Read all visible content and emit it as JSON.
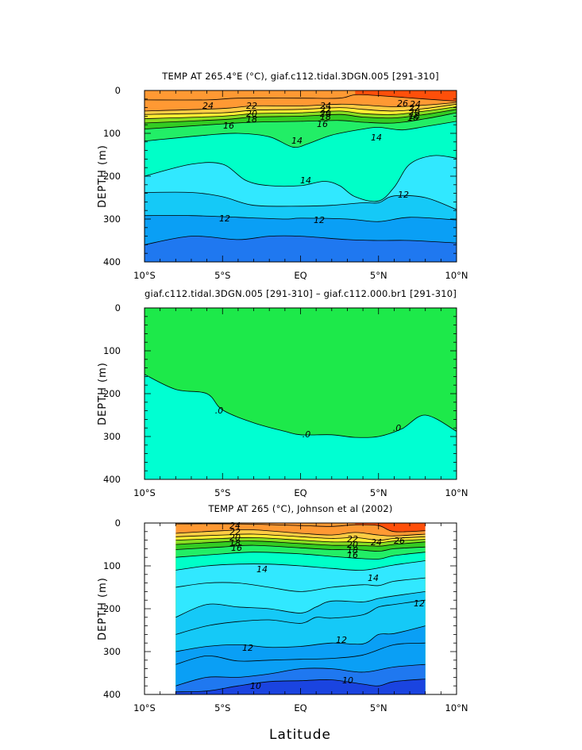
{
  "colors": {
    "c10": "#1a44e0",
    "c11": "#1f78f0",
    "c12": "#0a9ff5",
    "c13": "#15c9f7",
    "c14": "#31e8ff",
    "c15": "#00ffc8",
    "c16": "#22ee66",
    "c17": "#33cc22",
    "c18": "#88dd22",
    "c19": "#ffee33",
    "c20": "#ffcc44",
    "c24": "#ff9933",
    "c26": "#ff4f0a",
    "zero_up": "#1de94a",
    "zero_down": "#00ffd2"
  },
  "xlabel": "Latitude",
  "chart_data": [
    {
      "type": "heatmap",
      "title": "TEMP AT 265.4°E (°C), giaf.c112.tidal.3DGN.005 [291-310]",
      "ylabel": "DEPTH (m)",
      "xlim": [
        -10,
        10
      ],
      "ylim": [
        0,
        400
      ],
      "xticks": [
        "10°S",
        "5°S",
        "EQ",
        "5°N",
        "10°N"
      ],
      "yticks": [
        "0",
        "100",
        "200",
        "300",
        "400"
      ],
      "contour_labels": [
        "24",
        "22",
        "20",
        "18",
        "16",
        "14",
        "12",
        "26",
        "24",
        "22",
        "20",
        "18",
        "16",
        "16",
        "14",
        "14",
        "12",
        "12",
        "22",
        "24",
        "20",
        "18"
      ],
      "contours": [
        {
          "level": 26,
          "x": [
            -10,
            -6,
            -4,
            0,
            2.5,
            3.5,
            5,
            8,
            10
          ],
          "y": [
            22,
            22,
            18,
            18,
            18,
            10,
            12,
            20,
            25
          ]
        },
        {
          "level": 24,
          "x": [
            -10,
            -5,
            -3,
            0,
            2.5,
            4,
            6,
            8,
            10
          ],
          "y": [
            48,
            42,
            36,
            36,
            32,
            34,
            38,
            34,
            28
          ]
        },
        {
          "level": 22,
          "x": [
            -10,
            -5,
            -3,
            0,
            2.5,
            4,
            6,
            8,
            10
          ],
          "y": [
            56,
            52,
            46,
            44,
            40,
            44,
            48,
            42,
            32
          ]
        },
        {
          "level": 20,
          "x": [
            -10,
            -5,
            -3,
            0,
            2.5,
            4,
            6,
            8,
            10
          ],
          "y": [
            66,
            60,
            54,
            52,
            48,
            54,
            56,
            48,
            38
          ]
        },
        {
          "level": 18,
          "x": [
            -10,
            -5,
            -3,
            0,
            2.5,
            4,
            6,
            8,
            10
          ],
          "y": [
            76,
            68,
            62,
            60,
            56,
            62,
            64,
            56,
            44
          ]
        },
        {
          "level": 16,
          "x": [
            -10,
            -5,
            -3,
            0,
            2.5,
            4,
            6,
            8,
            10
          ],
          "y": [
            90,
            78,
            74,
            72,
            70,
            74,
            76,
            66,
            52
          ]
        },
        {
          "level": 14,
          "x": [
            -10,
            -6,
            -4,
            -2,
            -0.5,
            0.5,
            2,
            4,
            5,
            6.5,
            8,
            10
          ],
          "y": [
            118,
            104,
            100,
            108,
            132,
            124,
            104,
            90,
            86,
            92,
            84,
            72
          ]
        },
        {
          "level": 13,
          "x": [
            -10,
            -7,
            -5,
            -3.5,
            -2,
            0,
            1.5,
            2.5,
            3.5,
            5,
            6,
            7,
            8.5,
            10
          ],
          "y": [
            200,
            172,
            172,
            210,
            222,
            222,
            212,
            222,
            248,
            258,
            226,
            172,
            152,
            158
          ]
        },
        {
          "level": 12,
          "x": [
            -10,
            -7,
            -5,
            -3,
            0,
            2,
            4,
            5,
            6,
            8,
            10
          ],
          "y": [
            238,
            238,
            248,
            268,
            270,
            268,
            262,
            262,
            246,
            250,
            278
          ]
        },
        {
          "level": 11,
          "x": [
            -10,
            -7,
            -4,
            -1,
            0,
            3,
            5,
            7,
            10
          ],
          "y": [
            292,
            292,
            296,
            300,
            298,
            300,
            306,
            296,
            302
          ]
        },
        {
          "level": 10,
          "x": [
            -10,
            -7,
            -4,
            -2,
            0,
            3,
            5,
            7,
            10
          ],
          "y": [
            360,
            340,
            348,
            340,
            340,
            348,
            350,
            350,
            356
          ]
        }
      ]
    },
    {
      "type": "heatmap",
      "title": "giaf.c112.tidal.3DGN.005 [291-310] – giaf.c112.000.br1 [291-310]",
      "ylabel": "DEPTH (m)",
      "xlim": [
        -10,
        10
      ],
      "ylim": [
        0,
        400
      ],
      "xticks": [
        "10°S",
        "5°S",
        "EQ",
        "5°N",
        "10°N"
      ],
      "yticks": [
        "0",
        "100",
        "200",
        "300",
        "400"
      ],
      "contour_labels": [
        ".0",
        ".0",
        ".0"
      ],
      "contours": [
        {
          "level": 0,
          "x": [
            -10,
            -8,
            -6,
            -5,
            -3,
            -1,
            0,
            2,
            3.5,
            5,
            6.5,
            8,
            10
          ],
          "y": [
            155,
            190,
            200,
            238,
            268,
            288,
            296,
            296,
            302,
            300,
            282,
            250,
            288
          ]
        }
      ]
    },
    {
      "type": "heatmap",
      "title": "TEMP AT 265 (°C), Johnson et al (2002)",
      "ylabel": "DEPTH (m)",
      "xlim": [
        -10,
        10
      ],
      "ylim": [
        0,
        400
      ],
      "data_xlim": [
        -8,
        8
      ],
      "xticks": [
        "10°S",
        "5°S",
        "EQ",
        "5°N",
        "10°N"
      ],
      "yticks": [
        "0",
        "100",
        "200",
        "300",
        "400"
      ],
      "contour_labels": [
        "24",
        "22",
        "20",
        "18",
        "16",
        "14",
        "14",
        "12",
        "12",
        "12",
        "10",
        "10",
        "26",
        "24",
        "22",
        "20",
        "18",
        "16"
      ],
      "contours": [
        {
          "level": 26,
          "x": [
            -8,
            -4,
            0,
            2,
            3.5,
            5,
            6,
            8
          ],
          "y": [
            2,
            2,
            6,
            8,
            4,
            6,
            20,
            18
          ]
        },
        {
          "level": 24,
          "x": [
            -8,
            -5,
            -3,
            0,
            2,
            3.5,
            5,
            6,
            8
          ],
          "y": [
            24,
            18,
            16,
            24,
            28,
            22,
            28,
            30,
            26
          ]
        },
        {
          "level": 22,
          "x": [
            -8,
            -5,
            -3,
            0,
            2,
            3.5,
            5,
            6,
            8
          ],
          "y": [
            32,
            28,
            26,
            32,
            36,
            34,
            40,
            36,
            32
          ]
        },
        {
          "level": 20,
          "x": [
            -8,
            -5,
            -3,
            0,
            2,
            3.5,
            5,
            6,
            8
          ],
          "y": [
            40,
            36,
            34,
            40,
            44,
            44,
            46,
            42,
            38
          ]
        },
        {
          "level": 18,
          "x": [
            -8,
            -5,
            -3,
            0,
            2,
            3.5,
            5,
            6,
            8
          ],
          "y": [
            50,
            44,
            42,
            48,
            52,
            52,
            54,
            50,
            44
          ]
        },
        {
          "level": 16,
          "x": [
            -8,
            -5,
            -3,
            0,
            2,
            3.5,
            5,
            6,
            8
          ],
          "y": [
            62,
            56,
            52,
            58,
            62,
            62,
            66,
            60,
            56
          ]
        },
        {
          "level": 15,
          "x": [
            -8,
            -5,
            -3,
            0,
            2,
            3.5,
            5,
            6,
            8
          ],
          "y": [
            80,
            72,
            68,
            72,
            78,
            82,
            84,
            76,
            68
          ]
        },
        {
          "level": 14,
          "x": [
            -8,
            -6,
            -4,
            -2,
            0,
            2,
            4,
            6,
            8
          ],
          "y": [
            110,
            100,
            96,
            96,
            100,
            106,
            110,
            98,
            88
          ]
        },
        {
          "level": 13,
          "x": [
            -8,
            -6,
            -4,
            -2,
            0,
            2,
            4,
            5,
            6,
            8
          ],
          "y": [
            150,
            140,
            140,
            150,
            160,
            150,
            144,
            146,
            136,
            128
          ]
        },
        {
          "level": 12.5,
          "x": [
            -8,
            -6,
            -4,
            -2,
            0,
            1,
            2,
            4,
            5,
            6,
            8
          ],
          "y": [
            220,
            190,
            196,
            200,
            210,
            196,
            182,
            184,
            176,
            170,
            160
          ]
        },
        {
          "level": 12,
          "x": [
            -8,
            -6,
            -4,
            -2,
            0,
            1,
            2,
            4,
            5,
            6,
            8
          ],
          "y": [
            260,
            240,
            230,
            226,
            234,
            220,
            222,
            214,
            196,
            190,
            180
          ]
        },
        {
          "level": 11.5,
          "x": [
            -8,
            -6,
            -4,
            -2,
            0,
            2,
            4,
            5,
            6,
            8
          ],
          "y": [
            300,
            288,
            284,
            290,
            288,
            280,
            282,
            260,
            258,
            240
          ]
        },
        {
          "level": 11,
          "x": [
            -8,
            -6,
            -4,
            -2,
            0,
            2,
            4,
            6,
            8
          ],
          "y": [
            330,
            310,
            322,
            320,
            318,
            316,
            308,
            284,
            280
          ]
        },
        {
          "level": 10.5,
          "x": [
            -8,
            -6,
            -4,
            -2,
            0,
            2,
            4,
            6,
            8
          ],
          "y": [
            380,
            360,
            360,
            352,
            340,
            340,
            348,
            336,
            330
          ]
        },
        {
          "level": 10,
          "x": [
            -8,
            -6,
            -4,
            -2,
            0,
            2,
            4,
            5,
            6,
            8
          ],
          "y": [
            394,
            392,
            380,
            370,
            368,
            366,
            376,
            380,
            370,
            364
          ]
        }
      ]
    }
  ]
}
